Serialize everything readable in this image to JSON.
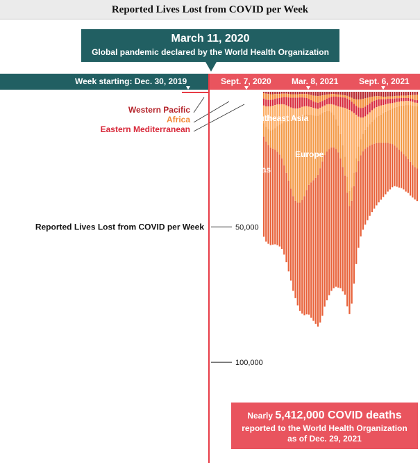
{
  "title": "Reported Lives Lost from COVID per Week",
  "callout": {
    "date": "March 11, 2020",
    "text": "Global pandemic declared by the World Health Organization"
  },
  "timeline": {
    "start_label": "Week starting: Dec. 30, 2019",
    "ticks": [
      "Sept. 7, 2020",
      "Mar. 8, 2021",
      "Sept. 6, 2021"
    ]
  },
  "axis_title": "Reported Lives Lost from COVID per Week",
  "axis_ticks": [
    "50,000",
    "100,000"
  ],
  "total": {
    "prefix": "Nearly ",
    "value": "5,412,000 COVID deaths",
    "line2": "reported to the World Health Organization",
    "line3": "as of Dec. 29, 2021"
  },
  "chart_data": {
    "type": "bar",
    "orientation": "vertical, bars hanging downward",
    "title": "Reported Lives Lost from COVID per Week",
    "x_start": "2019-12-30",
    "x_interval": "week",
    "ylim": [
      0,
      110000
    ],
    "y_ticks": [
      50000,
      100000
    ],
    "stacked": true,
    "series": [
      {
        "name": "Western Pacific",
        "color": "#b5252c",
        "values": [
          0,
          0,
          0,
          0,
          0,
          0,
          0,
          0,
          0,
          0,
          0,
          0,
          0,
          0,
          0,
          0,
          0,
          0,
          0,
          0,
          0,
          0,
          0,
          0,
          0,
          0,
          0,
          0,
          0,
          0,
          0,
          0,
          0,
          0,
          0,
          0,
          500,
          700,
          800,
          900,
          900,
          800,
          800,
          800,
          700,
          700,
          700,
          800,
          900,
          900,
          900,
          900,
          800,
          800,
          800,
          800,
          1000,
          1200,
          1400,
          1500,
          1600,
          1500,
          1300,
          1200,
          1000,
          900,
          800,
          800,
          900,
          1000,
          1100,
          1200,
          1300,
          1500,
          1800,
          2200,
          2600,
          2800,
          2900,
          2800,
          2600,
          2400,
          2200,
          2000,
          1800,
          1700,
          1600,
          1600,
          1700,
          1800,
          1800,
          1700,
          1700,
          1700,
          1600,
          1500,
          1500,
          1400,
          1400,
          1400,
          1300,
          1300,
          1200,
          1200,
          1100
        ]
      },
      {
        "name": "Africa",
        "color": "#f28a37",
        "values": [
          0,
          0,
          0,
          0,
          0,
          0,
          0,
          0,
          0,
          0,
          0,
          0,
          0,
          0,
          0,
          0,
          0,
          0,
          0,
          0,
          0,
          0,
          0,
          0,
          0,
          0,
          0,
          0,
          0,
          0,
          0,
          0,
          0,
          0,
          0,
          0,
          2000,
          2200,
          2200,
          2100,
          2000,
          1800,
          1600,
          1500,
          1400,
          1300,
          1300,
          1300,
          1300,
          1300,
          1300,
          1300,
          1300,
          1300,
          1400,
          1500,
          1700,
          1900,
          2200,
          2400,
          2500,
          2300,
          2100,
          1800,
          1500,
          1300,
          1100,
          1000,
          900,
          900,
          900,
          900,
          900,
          1000,
          1200,
          1500,
          1900,
          2400,
          2900,
          3200,
          3300,
          3100,
          2700,
          2300,
          1900,
          1600,
          1400,
          1200,
          1100,
          1000,
          1000,
          900,
          900,
          900,
          900,
          900,
          900,
          900,
          900,
          900,
          1000,
          1200,
          1500,
          1800,
          2000,
          2100
        ]
      },
      {
        "name": "Eastern Mediterranean",
        "color": "#d8293a",
        "values": [
          0,
          0,
          0,
          0,
          0,
          0,
          0,
          0,
          0,
          0,
          0,
          0,
          0,
          0,
          0,
          0,
          0,
          0,
          0,
          0,
          0,
          0,
          0,
          0,
          0,
          0,
          0,
          0,
          0,
          0,
          0,
          0,
          0,
          0,
          0,
          0,
          2600,
          2500,
          2400,
          2400,
          2300,
          2300,
          2300,
          2400,
          2500,
          2700,
          3000,
          3300,
          3600,
          3900,
          4000,
          4000,
          3800,
          3500,
          3200,
          3000,
          2800,
          2600,
          2400,
          2300,
          2200,
          2100,
          2100,
          2100,
          2200,
          2400,
          2700,
          3000,
          3300,
          3500,
          3600,
          3700,
          3800,
          3800,
          3700,
          3600,
          3400,
          3300,
          3400,
          3500,
          3600,
          3600,
          3500,
          3300,
          3100,
          2900,
          2700,
          2500,
          2300,
          2100,
          1900,
          1800,
          1700,
          1600,
          1500,
          1400,
          1300,
          1200,
          1200,
          1100,
          1100,
          1000,
          1000,
          1000,
          1000
        ]
      },
      {
        "name": "Southeast Asia",
        "color": "#fcaa5f",
        "values": [
          0,
          0,
          0,
          0,
          0,
          0,
          0,
          0,
          0,
          0,
          0,
          0,
          0,
          0,
          0,
          0,
          0,
          0,
          0,
          0,
          0,
          0,
          0,
          0,
          0,
          0,
          0,
          0,
          0,
          0,
          0,
          0,
          0,
          0,
          0,
          0,
          6500,
          7500,
          8300,
          8800,
          8800,
          8500,
          8000,
          7500,
          7000,
          6500,
          6000,
          5500,
          5000,
          4500,
          4100,
          3800,
          3600,
          3400,
          3200,
          3000,
          2900,
          2800,
          2700,
          2600,
          2500,
          2400,
          2300,
          2300,
          2400,
          2600,
          3000,
          3800,
          5000,
          7000,
          10000,
          14000,
          18000,
          25000,
          30000,
          28000,
          22000,
          16000,
          11000,
          8000,
          6000,
          5000,
          4600,
          4300,
          4200,
          4000,
          3800,
          3600,
          3300,
          3000,
          2700,
          2500,
          2300,
          2100,
          1900,
          1800,
          1700,
          1600,
          1600,
          1500,
          1500,
          1400,
          1400,
          1300,
          1300
        ]
      },
      {
        "name": "Europe",
        "color": "#f39844",
        "values": [
          0,
          0,
          0,
          0,
          0,
          0,
          0,
          0,
          0,
          0,
          0,
          0,
          0,
          0,
          0,
          0,
          0,
          0,
          0,
          0,
          0,
          0,
          0,
          0,
          0,
          0,
          0,
          0,
          0,
          0,
          0,
          0,
          0,
          0,
          0,
          0,
          5000,
          5500,
          6000,
          6500,
          7000,
          8000,
          9500,
          11000,
          13000,
          16000,
          19000,
          22000,
          25000,
          28000,
          30000,
          31000,
          31500,
          31000,
          30000,
          28000,
          26000,
          25000,
          24000,
          23000,
          22000,
          20000,
          18000,
          16000,
          15000,
          14000,
          13000,
          12000,
          11000,
          10000,
          9000,
          8000,
          7000,
          6000,
          5500,
          5000,
          5000,
          5200,
          5500,
          6000,
          6500,
          7000,
          7500,
          8000,
          8500,
          9000,
          9500,
          10000,
          10500,
          11000,
          11500,
          12000,
          12500,
          13000,
          14000,
          15000,
          16000,
          17000,
          18000,
          19000,
          20000,
          21000,
          22000,
          22500,
          23000
        ]
      },
      {
        "name": "Americas",
        "color": "#e8623a",
        "values": [
          0,
          0,
          0,
          0,
          0,
          0,
          0,
          0,
          0,
          0,
          0,
          0,
          0,
          0,
          0,
          0,
          0,
          0,
          0,
          0,
          0,
          0,
          0,
          0,
          0,
          0,
          0,
          0,
          0,
          0,
          0,
          0,
          0,
          0,
          0,
          0,
          37000,
          37000,
          36500,
          36000,
          35500,
          35000,
          34500,
          34000,
          33500,
          33000,
          33000,
          33500,
          34000,
          35000,
          36000,
          38000,
          40000,
          42000,
          44000,
          46000,
          48000,
          50000,
          52000,
          54000,
          56000,
          57000,
          57000,
          56000,
          55000,
          54000,
          53000,
          52000,
          51000,
          50000,
          48000,
          46000,
          44000,
          42000,
          40000,
          38000,
          36000,
          34000,
          32000,
          30000,
          29000,
          28000,
          27000,
          26000,
          25000,
          24000,
          23000,
          22000,
          21000,
          20000,
          19000,
          18000,
          17000,
          16000,
          15000,
          14500,
          14000,
          13500,
          13000,
          13000,
          12500,
          12500,
          12000,
          12000,
          12000
        ]
      }
    ],
    "annotations": [
      "Western Pacific",
      "Africa",
      "Eastern Mediterranean",
      "Southeast Asia",
      "Europe",
      "Americas"
    ]
  }
}
